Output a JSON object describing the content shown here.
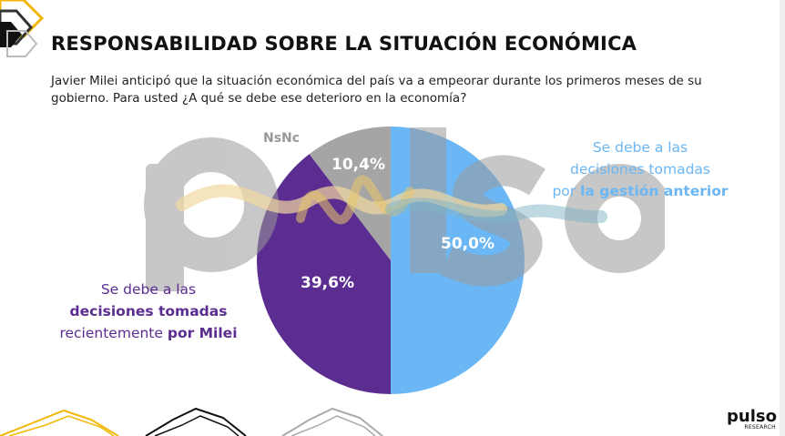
{
  "header": {
    "title": "RESPONSABILIDAD SOBRE LA SITUACIÓN ECONÓMICA",
    "subtitle": "Javier Milei anticipó que la situación económica del país va a empeorar durante los primeros meses de su gobierno. Para usted ¿A qué se debe ese deterioro en la economía?"
  },
  "chart_data": {
    "type": "pie",
    "slices": [
      {
        "label": "Se debe a las decisiones tomadas por la gestión anterior",
        "value": 50.0,
        "display": "50,0%",
        "color": "#6bb7f5"
      },
      {
        "label": "Se debe a las decisiones tomadas recientemente por Milei",
        "value": 39.6,
        "display": "39,6%",
        "color": "#5c2d91"
      },
      {
        "label": "NsNc",
        "value": 10.4,
        "display": "10,4%",
        "color": "#a5a5a5"
      }
    ]
  },
  "legend": {
    "right": {
      "line1": "Se debe a las",
      "line2": "decisiones tomadas",
      "line3_plain": "por ",
      "line3_bold": "la gestión anterior"
    },
    "left": {
      "line1": "Se debe a las",
      "line2_bold": "decisiones tomadas",
      "line3_plain": "recientemente ",
      "line3_bold": "por Milei"
    },
    "nsnc": "NsNc"
  },
  "watermark": {
    "text": "pulso"
  },
  "logo": {
    "text": "pulso",
    "sub": "RESEARCH"
  }
}
